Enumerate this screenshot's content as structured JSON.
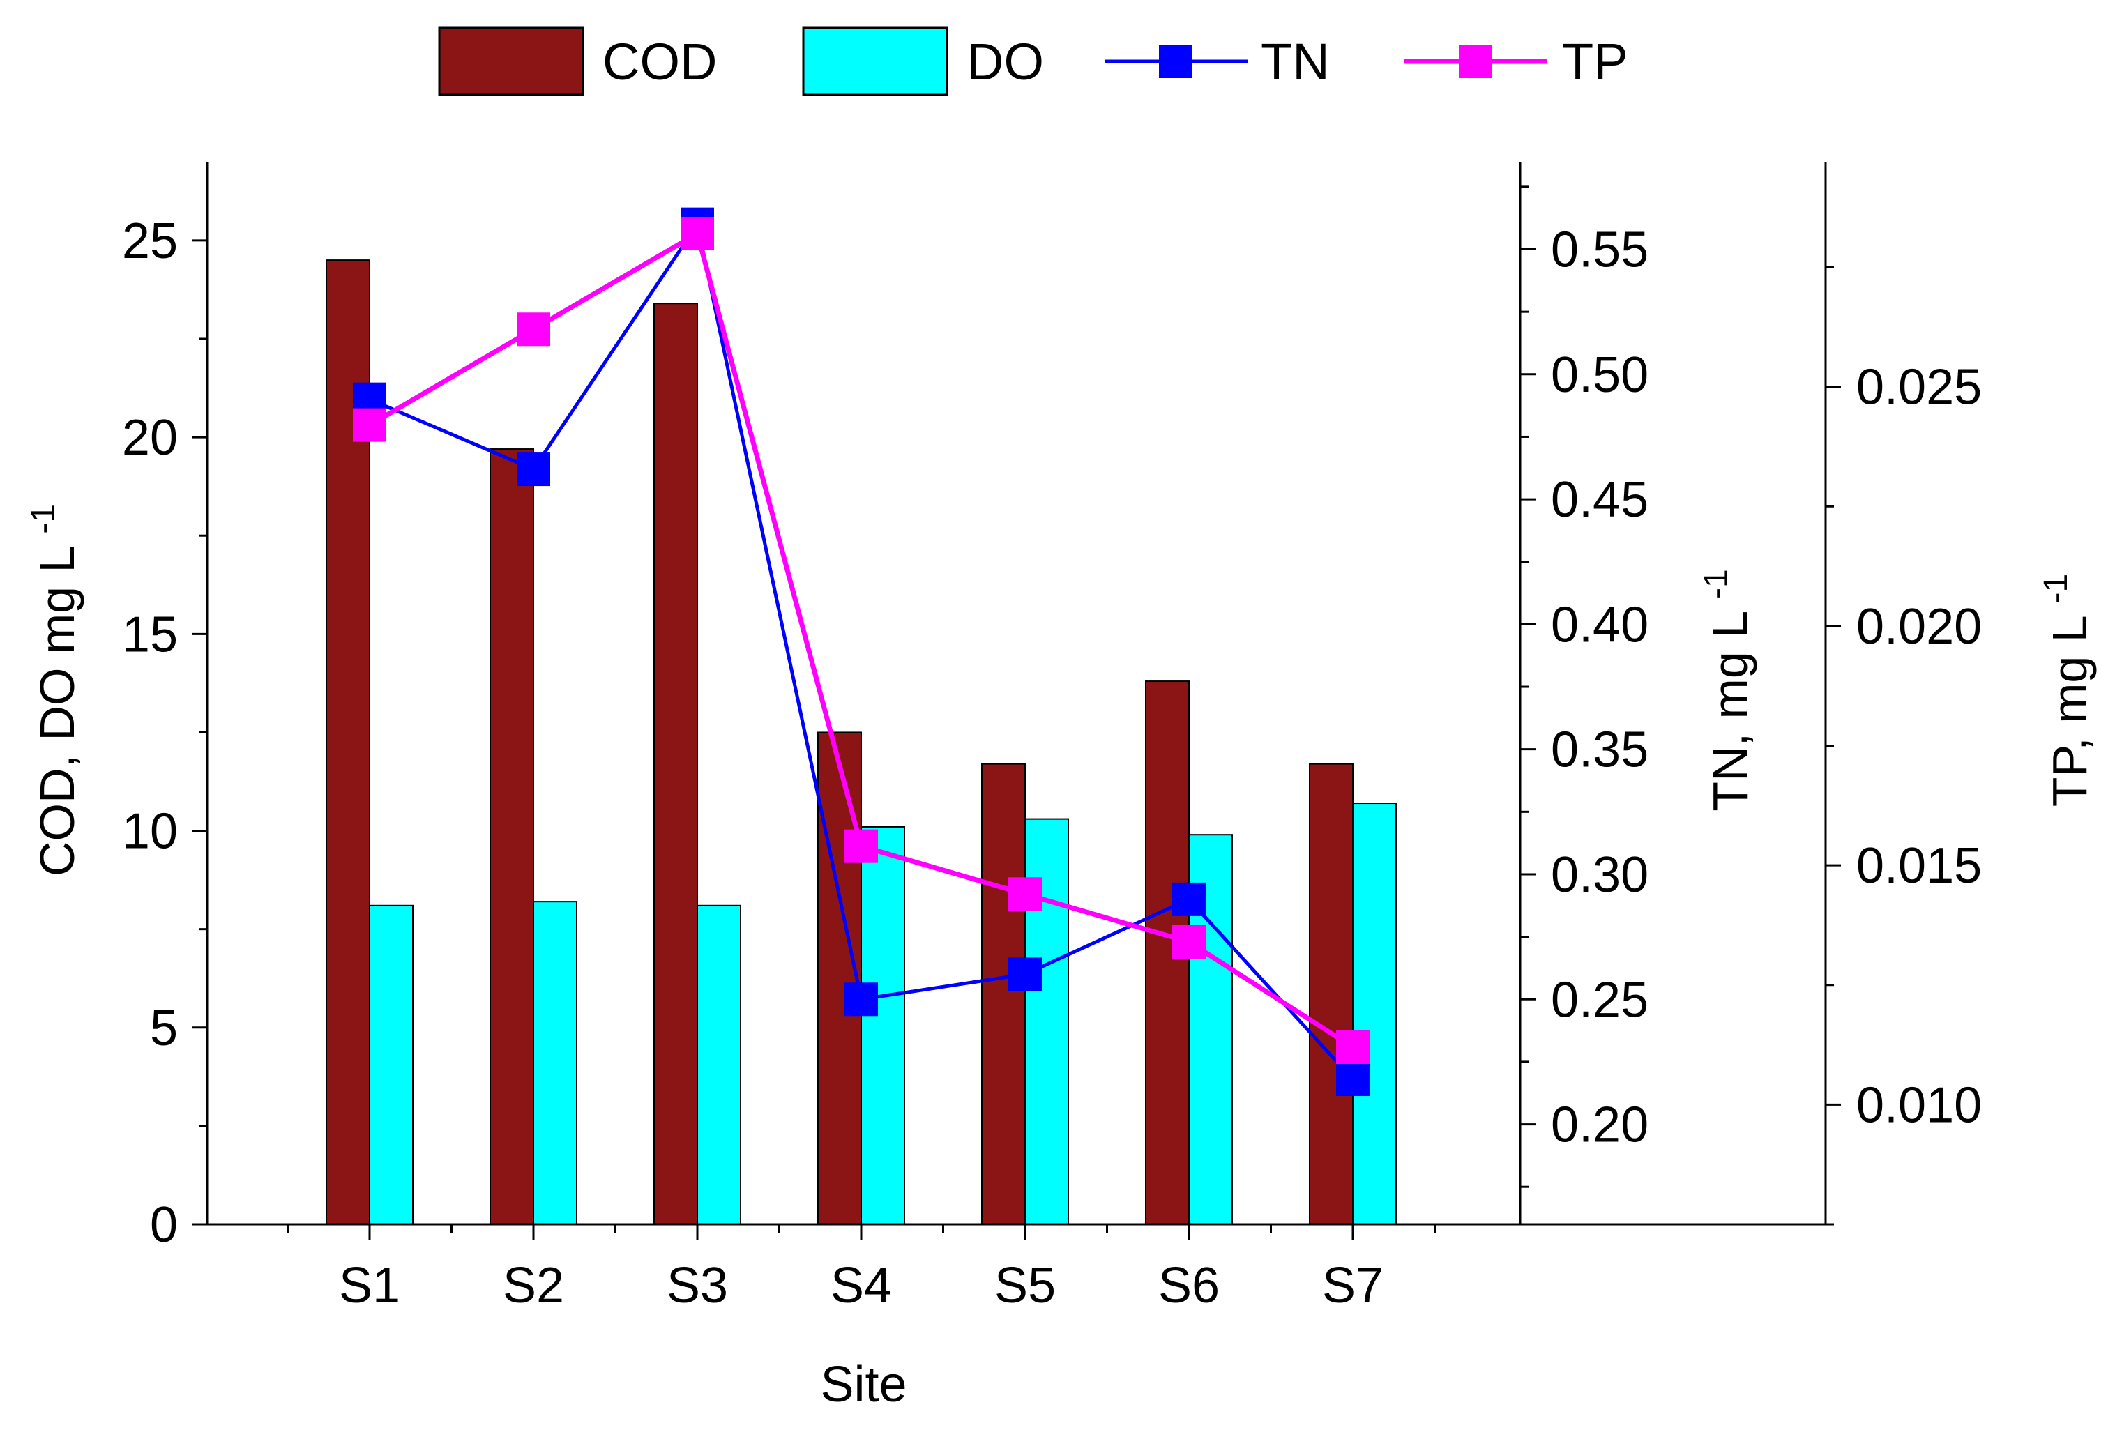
{
  "chart_data": {
    "type": "bar",
    "categories": [
      "S1",
      "S2",
      "S3",
      "S4",
      "S5",
      "S6",
      "S7"
    ],
    "series": [
      {
        "name": "COD",
        "kind": "bar",
        "axis": "left",
        "color": "#8b1515",
        "values": [
          24.5,
          19.7,
          23.4,
          12.5,
          11.7,
          13.8,
          11.7
        ]
      },
      {
        "name": "DO",
        "kind": "bar",
        "axis": "left",
        "color": "#00ffff",
        "values": [
          8.1,
          8.2,
          8.1,
          10.1,
          10.3,
          9.9,
          10.7
        ]
      },
      {
        "name": "TN",
        "kind": "line",
        "axis": "right1",
        "color": "#0000ff",
        "values": [
          0.49,
          0.462,
          0.56,
          0.25,
          0.26,
          0.29,
          0.218
        ]
      },
      {
        "name": "TP",
        "kind": "line",
        "axis": "right2",
        "color": "#ff00ff",
        "values": [
          0.0242,
          0.0262,
          0.0282,
          0.0154,
          0.0144,
          0.0134,
          0.0112
        ]
      }
    ],
    "xlabel": "Site",
    "axes": {
      "left": {
        "label": "COD, DO mg L",
        "label_sup": "-1",
        "min": 0,
        "max": 27,
        "ticks": [
          0,
          5,
          10,
          15,
          20,
          25
        ],
        "tick_labels": [
          "0",
          "5",
          "10",
          "15",
          "20",
          "25"
        ]
      },
      "right1": {
        "label": "TN, mg L",
        "label_sup": "-1",
        "min": 0.16,
        "max": 0.585,
        "ticks": [
          0.2,
          0.25,
          0.3,
          0.35,
          0.4,
          0.45,
          0.5,
          0.55
        ],
        "tick_labels": [
          "0.20",
          "0.25",
          "0.30",
          "0.35",
          "0.40",
          "0.45",
          "0.50",
          "0.55"
        ]
      },
      "right2": {
        "label": "TP, mg L",
        "label_sup": "-1",
        "min": 0.0075,
        "max": 0.0297,
        "ticks": [
          0.01,
          0.015,
          0.02,
          0.025
        ],
        "tick_labels": [
          "0.010",
          "0.015",
          "0.020",
          "0.025"
        ]
      }
    },
    "legend": {
      "position": "top",
      "entries": [
        "COD",
        "DO",
        "TN",
        "TP"
      ]
    }
  }
}
